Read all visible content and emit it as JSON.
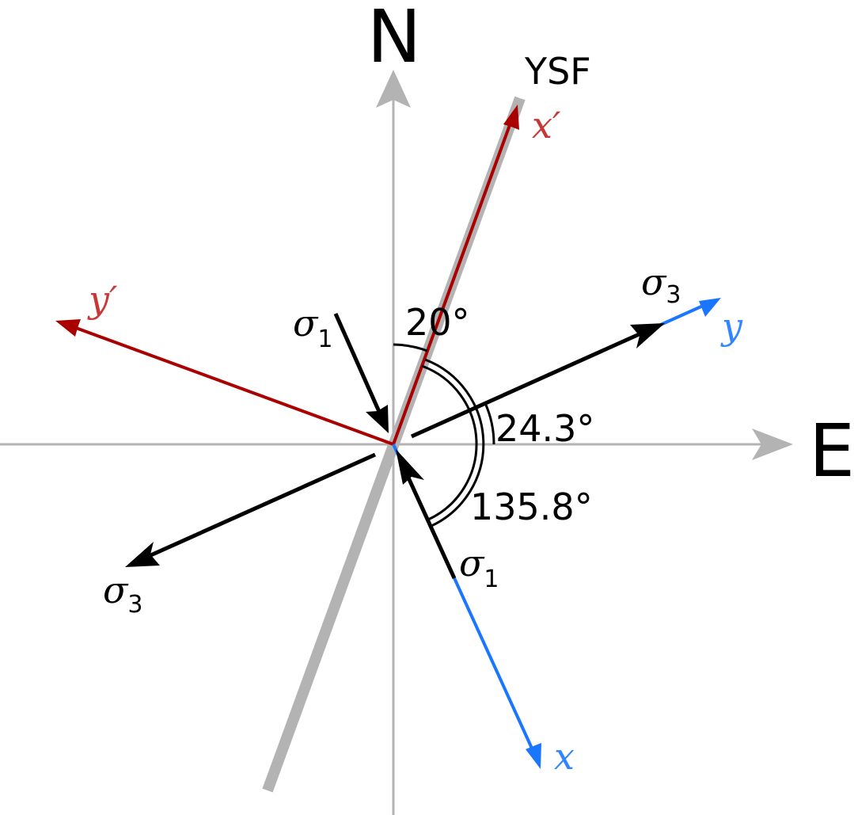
{
  "colors": {
    "axis_gray": "#b3b3b3",
    "fault_gray": "#b3b3b3",
    "red": "#aa0000",
    "red_label": "#c83737",
    "blue": "#1a75ff",
    "blue_label": "#3385ff",
    "black": "#000000"
  },
  "labels": {
    "north": "N",
    "east": "E",
    "fault": "YSF",
    "x_prime": "x′",
    "y_prime": "y′",
    "x": "x",
    "y": "y",
    "sigma": "σ",
    "sub_1": "1",
    "sub_3": "3",
    "angle_20": "20°",
    "angle_24": "24.3°",
    "angle_135": "135.8°"
  },
  "icons": {
    "arrowhead": "arrowhead-icon"
  }
}
